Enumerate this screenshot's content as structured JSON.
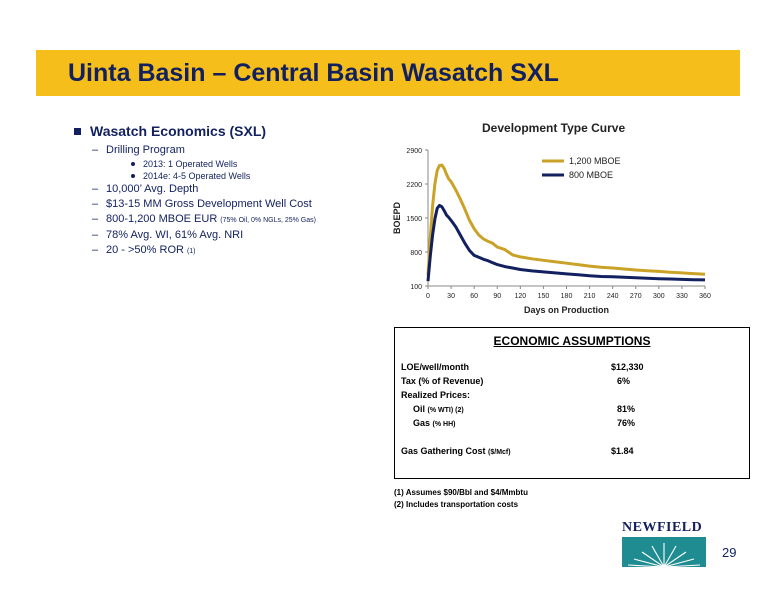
{
  "slide": {
    "title": "Uinta Basin – Central Basin Wasatch SXL",
    "page_number": "29"
  },
  "bullets": {
    "main": "Wasatch Economics (SXL)",
    "items": [
      {
        "text": "Drilling Program",
        "note": "",
        "sub": [
          "2013: 1 Operated Wells",
          "2014e: 4-5 Operated Wells"
        ]
      },
      {
        "text": "10,000’ Avg. Depth",
        "note": ""
      },
      {
        "text": "$13-15 MM Gross Development Well Cost",
        "note": ""
      },
      {
        "text": "800-1,200 MBOE EUR",
        "note": "(75% Oil, 0% NGLs, 25% Gas)"
      },
      {
        "text": "78% Avg. WI, 61% Avg. NRI",
        "note": ""
      },
      {
        "text": "20 - >50% ROR",
        "note": "(1)"
      }
    ]
  },
  "chart_data": {
    "type": "line",
    "title": "Development Type Curve",
    "xlabel": "Days on Production",
    "ylabel": "BOEPD",
    "xlim": [
      0,
      360
    ],
    "ylim": [
      100,
      2900
    ],
    "xticks": [
      0,
      30,
      60,
      90,
      120,
      150,
      180,
      210,
      240,
      270,
      300,
      330,
      360
    ],
    "yticks": [
      100,
      800,
      1500,
      2200,
      2900
    ],
    "legend_position": "top-right",
    "series": [
      {
        "name": "1,200 MBOE",
        "color": "#c9a227",
        "x": [
          0,
          3,
          6,
          9,
          12,
          15,
          18,
          21,
          24,
          27,
          30,
          36,
          42,
          48,
          54,
          60,
          66,
          72,
          78,
          84,
          90,
          100,
          110,
          120,
          135,
          150,
          165,
          180,
          195,
          210,
          225,
          240,
          255,
          270,
          285,
          300,
          315,
          330,
          345,
          360
        ],
        "values": [
          320,
          1100,
          1750,
          2200,
          2480,
          2580,
          2590,
          2520,
          2400,
          2300,
          2250,
          2080,
          1890,
          1680,
          1450,
          1280,
          1150,
          1070,
          1020,
          980,
          900,
          850,
          740,
          700,
          660,
          630,
          600,
          570,
          540,
          510,
          485,
          470,
          450,
          430,
          415,
          400,
          385,
          370,
          355,
          340
        ]
      },
      {
        "name": "800 MBOE",
        "color": "#12205f",
        "x": [
          0,
          3,
          6,
          9,
          12,
          15,
          18,
          21,
          24,
          27,
          30,
          36,
          42,
          48,
          54,
          60,
          66,
          72,
          78,
          84,
          90,
          100,
          110,
          120,
          135,
          150,
          165,
          180,
          195,
          210,
          225,
          240,
          255,
          270,
          285,
          300,
          315,
          330,
          345,
          360
        ],
        "values": [
          200,
          720,
          1150,
          1480,
          1700,
          1760,
          1730,
          1650,
          1560,
          1510,
          1450,
          1320,
          1150,
          980,
          830,
          730,
          690,
          650,
          620,
          580,
          540,
          500,
          470,
          440,
          410,
          390,
          370,
          350,
          330,
          310,
          295,
          290,
          280,
          270,
          260,
          250,
          245,
          235,
          230,
          225
        ]
      }
    ]
  },
  "economics": {
    "title": "ECONOMIC ASSUMPTIONS",
    "loe_label": "LOE/well/month",
    "loe_value": "$12,330",
    "tax_label": "Tax (% of Revenue)",
    "tax_value": "6%",
    "realized_label": "Realized Prices:",
    "oil_label": "Oil",
    "oil_note": "(% WTI) (2)",
    "oil_value": "81%",
    "gas_label": "Gas",
    "gas_note": "(% HH)",
    "gas_value": "76%",
    "gathering_label": "Gas Gathering Cost",
    "gathering_note": "($/Mcf)",
    "gathering_value": "$1.84"
  },
  "footnotes": [
    "(1) Assumes $90/Bbl and $4/Mmbtu",
    "(2) Includes transportation costs"
  ],
  "logo": {
    "text": "NEWFIELD",
    "color": "#1e8c91"
  },
  "colors": {
    "title_bar": "#f5be1a",
    "navy": "#12205f",
    "gold": "#c9a227"
  }
}
